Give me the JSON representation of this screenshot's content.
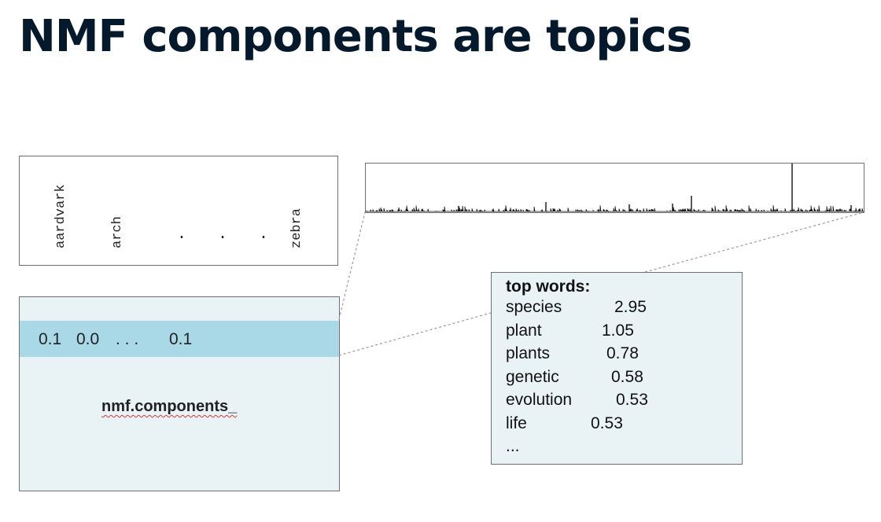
{
  "title": "NMF components are topics",
  "vocabulary": {
    "words": [
      "aardvark",
      "arch",
      "zebra"
    ],
    "ellipsis": ". . ."
  },
  "matrix": {
    "row_values": [
      "0.1",
      "0.0",
      ". . .",
      "0.1"
    ],
    "label": "nmf.components_"
  },
  "top_words": {
    "header": "top words:",
    "items": [
      {
        "word": "species",
        "value": "2.95"
      },
      {
        "word": "plant",
        "value": "1.05"
      },
      {
        "word": "plants",
        "value": "0.78"
      },
      {
        "word": "genetic",
        "value": "0.58"
      },
      {
        "word": "evolution",
        "value": "0.53"
      },
      {
        "word": "life",
        "value": "0.53"
      }
    ],
    "ellipsis": "..."
  },
  "colors": {
    "title": "#05192d",
    "highlight_row": "#a9d8e6",
    "box_fill": "#e9f2f5"
  }
}
